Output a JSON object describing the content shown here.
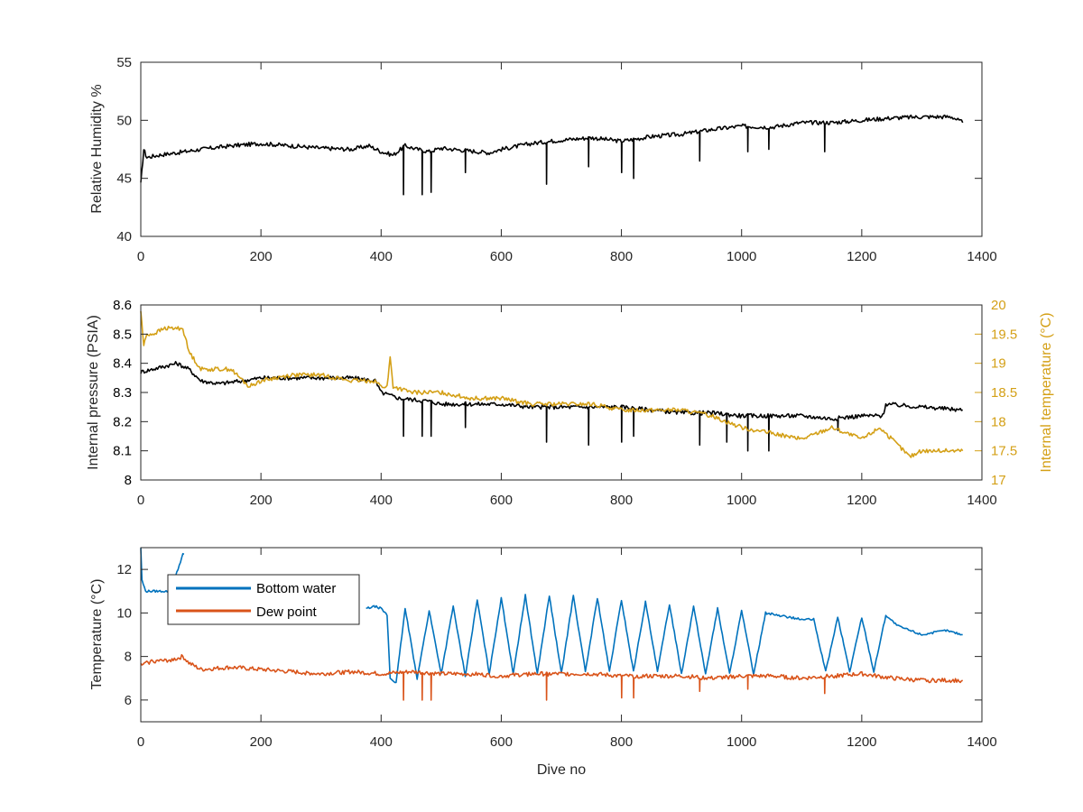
{
  "figure": {
    "xlabel": "Dive no"
  },
  "colors": {
    "axis": "#262626",
    "black_series": "#000000",
    "gold": "#D4A017",
    "blue": "#0072BD",
    "orange": "#D95319"
  },
  "chart_data": [
    {
      "type": "line",
      "xlim": [
        0,
        1400
      ],
      "ylim": [
        40,
        55
      ],
      "xticks": [
        0,
        200,
        400,
        600,
        800,
        1000,
        1200,
        1400
      ],
      "yticks": [
        40,
        45,
        50,
        55
      ],
      "xlabel": "",
      "ylabel": "Relative Humidity %",
      "grid": false,
      "series": [
        {
          "color": "#000000",
          "x": [
            0,
            5,
            10,
            30,
            60,
            100,
            150,
            200,
            250,
            300,
            350,
            380,
            400,
            420,
            440,
            460,
            480,
            500,
            540,
            580,
            600,
            650,
            700,
            750,
            800,
            850,
            900,
            950,
            1000,
            1050,
            1100,
            1150,
            1200,
            1250,
            1300,
            1350,
            1368
          ],
          "y": [
            44.5,
            47.5,
            46.8,
            47.0,
            47.2,
            47.5,
            47.8,
            48.0,
            47.8,
            47.6,
            47.5,
            47.8,
            47.3,
            47.0,
            47.8,
            47.5,
            47.3,
            47.6,
            47.4,
            47.2,
            47.5,
            48.0,
            48.3,
            48.5,
            48.2,
            48.6,
            48.8,
            49.2,
            49.5,
            49.4,
            49.8,
            49.8,
            50.0,
            50.2,
            50.3,
            50.3,
            49.8
          ],
          "spikes": [
            [
              437,
              43.6
            ],
            [
              468,
              43.6
            ],
            [
              483,
              43.8
            ],
            [
              540,
              45.5
            ],
            [
              675,
              44.5
            ],
            [
              745,
              46.0
            ],
            [
              800,
              45.5
            ],
            [
              820,
              45.0
            ],
            [
              930,
              46.5
            ],
            [
              1010,
              47.3
            ],
            [
              1045,
              47.5
            ],
            [
              1138,
              47.3
            ]
          ]
        }
      ]
    },
    {
      "type": "line",
      "xlim": [
        0,
        1400
      ],
      "ylim": [
        8.0,
        8.6
      ],
      "y2lim": [
        17,
        20
      ],
      "xticks": [
        0,
        200,
        400,
        600,
        800,
        1000,
        1200,
        1400
      ],
      "yticks": [
        "8",
        "8.1",
        "8.2",
        "8.3",
        "8.4",
        "8.5",
        "8.6"
      ],
      "y2ticks": [
        "17",
        "17.5",
        "18",
        "18.5",
        "19",
        "19.5",
        "20"
      ],
      "ylabel": "Internal pressure (PSIA)",
      "y2label": "Internal temperature (°C)",
      "grid": false,
      "series": [
        {
          "axis": "left",
          "color": "#000000",
          "x": [
            0,
            20,
            40,
            60,
            80,
            100,
            130,
            170,
            200,
            250,
            300,
            350,
            390,
            400,
            430,
            480,
            500,
            550,
            600,
            650,
            700,
            750,
            800,
            850,
            900,
            950,
            1000,
            1050,
            1100,
            1150,
            1200,
            1235,
            1240,
            1300,
            1368
          ],
          "y": [
            8.37,
            8.38,
            8.39,
            8.4,
            8.38,
            8.34,
            8.33,
            8.34,
            8.35,
            8.35,
            8.35,
            8.35,
            8.34,
            8.3,
            8.28,
            8.27,
            8.26,
            8.26,
            8.26,
            8.25,
            8.25,
            8.25,
            8.25,
            8.24,
            8.23,
            8.23,
            8.22,
            8.22,
            8.22,
            8.21,
            8.22,
            8.22,
            8.26,
            8.25,
            8.24
          ],
          "spikes": [
            [
              437,
              8.15
            ],
            [
              468,
              8.15
            ],
            [
              483,
              8.15
            ],
            [
              540,
              8.18
            ],
            [
              675,
              8.13
            ],
            [
              745,
              8.12
            ],
            [
              800,
              8.13
            ],
            [
              820,
              8.15
            ],
            [
              930,
              8.12
            ],
            [
              975,
              8.13
            ],
            [
              1010,
              8.1
            ],
            [
              1045,
              8.1
            ],
            [
              1160,
              8.17
            ]
          ]
        },
        {
          "axis": "right",
          "color": "#D4A017",
          "x": [
            0,
            5,
            10,
            20,
            40,
            60,
            70,
            80,
            100,
            150,
            180,
            200,
            250,
            300,
            350,
            390,
            400,
            410,
            415,
            420,
            450,
            500,
            550,
            600,
            650,
            700,
            750,
            800,
            850,
            900,
            950,
            1000,
            1050,
            1100,
            1150,
            1200,
            1230,
            1250,
            1280,
            1300,
            1350,
            1368
          ],
          "y": [
            19.9,
            19.3,
            19.5,
            19.5,
            19.6,
            19.6,
            19.6,
            19.2,
            18.9,
            18.9,
            18.6,
            18.7,
            18.8,
            18.8,
            18.7,
            18.7,
            18.6,
            18.6,
            19.1,
            18.6,
            18.5,
            18.5,
            18.4,
            18.4,
            18.3,
            18.3,
            18.3,
            18.2,
            18.2,
            18.2,
            18.1,
            17.9,
            17.8,
            17.7,
            17.9,
            17.7,
            17.9,
            17.7,
            17.4,
            17.5,
            17.5,
            17.5
          ]
        }
      ]
    },
    {
      "type": "line",
      "xlim": [
        0,
        1400
      ],
      "ylim": [
        5,
        13
      ],
      "xticks": [
        0,
        200,
        400,
        600,
        800,
        1000,
        1200,
        1400
      ],
      "yticks": [
        6,
        8,
        10,
        12
      ],
      "xlabel": "Dive no",
      "ylabel": "Temperature (°C)",
      "grid": false,
      "legend": {
        "location": "top-left",
        "entries": [
          "Bottom water",
          "Dew point"
        ]
      },
      "series": [
        {
          "name": "Bottom water",
          "color": "#0072BD",
          "x": [
            0,
            2,
            8,
            15,
            30,
            50,
            70,
            72
          ],
          "y": [
            13.0,
            11.5,
            11.0,
            11.0,
            11.0,
            11.0,
            12.7,
            12.7
          ]
        },
        {
          "name": "Bottom water",
          "color": "#0072BD",
          "x": [
            375,
            390,
            400,
            410,
            415,
            425,
            440,
            460,
            480,
            500,
            520,
            540,
            560,
            580,
            600,
            620,
            640,
            660,
            680,
            700,
            720,
            740,
            760,
            780,
            800,
            820,
            840,
            860,
            880,
            900,
            920,
            940,
            960,
            980,
            1000,
            1020,
            1040,
            1060,
            1080,
            1100,
            1120,
            1140,
            1160,
            1180,
            1200,
            1220,
            1240,
            1260,
            1280,
            1300,
            1320,
            1340,
            1368
          ],
          "y": [
            10.2,
            10.3,
            10.2,
            9.9,
            7.0,
            6.8,
            10.2,
            7.0,
            10.1,
            7.2,
            10.3,
            7.1,
            10.6,
            7.2,
            10.7,
            7.2,
            10.8,
            7.2,
            10.8,
            7.2,
            10.8,
            7.3,
            10.7,
            7.3,
            10.6,
            7.3,
            10.5,
            7.3,
            10.4,
            7.2,
            10.3,
            7.2,
            10.2,
            7.2,
            10.1,
            7.2,
            10.0,
            9.9,
            9.8,
            9.7,
            9.7,
            7.3,
            9.8,
            7.3,
            9.8,
            7.3,
            9.9,
            9.4,
            9.2,
            9.0,
            9.1,
            9.2,
            9.0
          ]
        },
        {
          "name": "Dew point",
          "color": "#D95319",
          "x": [
            0,
            20,
            40,
            60,
            70,
            80,
            100,
            150,
            200,
            250,
            300,
            350,
            400,
            450,
            500,
            550,
            600,
            650,
            700,
            750,
            800,
            850,
            900,
            950,
            1000,
            1050,
            1100,
            1150,
            1200,
            1250,
            1300,
            1350,
            1368
          ],
          "y": [
            7.6,
            7.8,
            7.8,
            7.9,
            8.0,
            7.7,
            7.4,
            7.5,
            7.4,
            7.3,
            7.2,
            7.3,
            7.2,
            7.3,
            7.2,
            7.2,
            7.1,
            7.2,
            7.2,
            7.2,
            7.1,
            7.1,
            7.1,
            7.0,
            7.1,
            7.1,
            7.0,
            7.1,
            7.2,
            7.0,
            6.9,
            6.9,
            6.9
          ],
          "spikes": [
            [
              437,
              6.0
            ],
            [
              468,
              6.0
            ],
            [
              483,
              6.0
            ],
            [
              675,
              6.0
            ],
            [
              800,
              6.1
            ],
            [
              820,
              6.1
            ],
            [
              930,
              6.4
            ],
            [
              1010,
              6.5
            ],
            [
              1138,
              6.3
            ]
          ]
        }
      ]
    }
  ]
}
